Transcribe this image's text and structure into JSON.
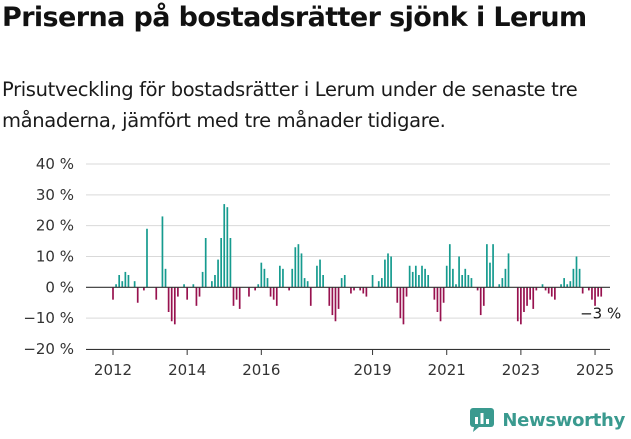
{
  "header": {
    "title": "Priserna på bostadsrätter sjönk i Lerum",
    "subtitle": "Prisutveckling för bostadsrätter i Lerum under de senaste tre månaderna, jämfört med tre månader tidigare."
  },
  "brand": {
    "name": "Newsworthy"
  },
  "colors": {
    "positive": "#169b8f",
    "negative": "#98124f",
    "grid": "#d9d9d9",
    "axis": "#333333",
    "brand": "#3a9a8f"
  },
  "chart_data": {
    "type": "bar",
    "title": "Priserna på bostadsrätter sjönk i Lerum",
    "subtitle": "Prisutveckling för bostadsrätter i Lerum under de senaste tre månaderna, jämfört med tre månader tidigare.",
    "xlabel": "",
    "ylabel": "",
    "unit": "%",
    "ylim": [
      -20,
      40
    ],
    "yticks": [
      40,
      30,
      20,
      10,
      0,
      -10,
      -20
    ],
    "ytick_labels": [
      "40 %",
      "30 %",
      "20 %",
      "10 %",
      "0 %",
      "−10 %",
      "−20 %"
    ],
    "xticks": [
      {
        "label": "2012",
        "index": 0
      },
      {
        "label": "2014",
        "index": 24
      },
      {
        "label": "2016",
        "index": 48
      },
      {
        "label": "2019",
        "index": 84
      },
      {
        "label": "2021",
        "index": 108
      },
      {
        "label": "2023",
        "index": 132
      },
      {
        "label": "2025",
        "index": 156
      }
    ],
    "x_start": "2012-01",
    "series": [
      {
        "name": "Prisutveckling",
        "values": [
          -4,
          1,
          4,
          2,
          5,
          4,
          0,
          2,
          -5,
          0,
          -1,
          19,
          0,
          0,
          -4,
          0,
          23,
          6,
          -8,
          -11,
          -12,
          -3,
          0,
          1,
          -4,
          0,
          1,
          -6,
          -3,
          5,
          16,
          0,
          2,
          4,
          9,
          16,
          27,
          26,
          16,
          -6,
          -4,
          -7,
          0,
          0,
          -3,
          0,
          -1,
          1,
          8,
          6,
          3,
          -3,
          -4,
          -6,
          7,
          6,
          0,
          -1,
          6,
          13,
          14,
          11,
          3,
          2,
          -6,
          0,
          7,
          9,
          4,
          0,
          -6,
          -9,
          -11,
          -7,
          3,
          4,
          0,
          -2,
          -1,
          0,
          -1,
          -2,
          -3,
          0,
          4,
          0,
          2,
          3,
          9,
          11,
          10,
          0,
          -5,
          -10,
          -12,
          -3,
          7,
          5,
          7,
          4,
          7,
          6,
          4,
          0,
          -4,
          -8,
          -11,
          -5,
          7,
          14,
          6,
          1,
          10,
          4,
          6,
          4,
          3,
          0,
          -1,
          -9,
          -6,
          14,
          8,
          14,
          0,
          1,
          3,
          6,
          11,
          0,
          0,
          -11,
          -12,
          -8,
          -6,
          -4,
          -7,
          -1,
          0,
          1,
          -1,
          -2,
          -3,
          -4,
          0,
          1,
          3,
          1,
          2,
          6,
          10,
          6,
          -2,
          0,
          -1,
          -4,
          -6,
          -3,
          -3
        ]
      }
    ],
    "annotations": [
      {
        "text": "−3 %",
        "target": "last"
      }
    ]
  }
}
